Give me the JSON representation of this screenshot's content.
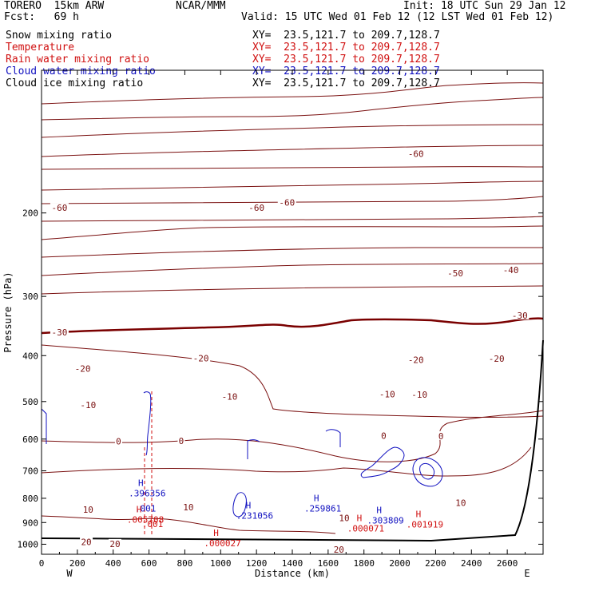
{
  "header": {
    "model": "TORERO  15km ARW",
    "org": "NCAR/MMM",
    "init": "Init: 18 UTC Sun 29 Jan 12",
    "fcst": "Fcst:   69 h",
    "valid": "Valid: 15 UTC Wed 01 Feb 12 (12 LST Wed 01 Feb 12)"
  },
  "colors": {
    "black": "#000000",
    "temperature": "#7a1010",
    "rain": "#d01010",
    "cloud_water": "#1010c0",
    "freezing": "#7a0000"
  },
  "legend": [
    {
      "name": "Snow mixing ratio",
      "xy": "XY=  23.5,121.7 to 209.7,128.7",
      "color": "#000000"
    },
    {
      "name": "Temperature",
      "xy": "XY=  23.5,121.7 to 209.7,128.7",
      "color": "#d01010"
    },
    {
      "name": "Rain water mixing ratio",
      "xy": "XY=  23.5,121.7 to 209.7,128.7",
      "color": "#d01010"
    },
    {
      "name": "Cloud water mixing ratio",
      "xy": "XY=  23.5,121.7 to 209.7,128.7",
      "color": "#1010c0"
    },
    {
      "name": "Cloud ice mixing ratio",
      "xy": "XY=  23.5,121.7 to 209.7,128.7",
      "color": "#000000"
    }
  ],
  "chart_data": {
    "type": "cross-section contour",
    "xlabel": "Distance (km)",
    "ylabel": "Pressure (hPa)",
    "xlim": [
      0,
      2800
    ],
    "ylim": [
      1050,
      100
    ],
    "x_ticks": [
      0,
      200,
      400,
      600,
      800,
      1000,
      1200,
      1400,
      1600,
      1800,
      2000,
      2200,
      2400,
      2600
    ],
    "y_ticks": [
      200,
      300,
      400,
      500,
      600,
      700,
      800,
      900,
      1000
    ],
    "endpoints": {
      "left": "W",
      "right": "E"
    },
    "temperature_contours": [
      {
        "label": "-60",
        "x": 100,
        "p": 195
      },
      {
        "label": "-60",
        "x": 1200,
        "p": 195
      },
      {
        "label": "-60",
        "x": 1370,
        "p": 190
      },
      {
        "label": "-60",
        "x": 2090,
        "p": 150
      },
      {
        "label": "-50",
        "x": 2310,
        "p": 268
      },
      {
        "label": "-40",
        "x": 2620,
        "p": 264
      },
      {
        "label": "-30",
        "x": 100,
        "p": 357
      },
      {
        "label": "-30",
        "x": 2670,
        "p": 329
      },
      {
        "label": "-20",
        "x": 230,
        "p": 426
      },
      {
        "label": "-20",
        "x": 890,
        "p": 405
      },
      {
        "label": "-20",
        "x": 2090,
        "p": 408
      },
      {
        "label": "-20",
        "x": 2540,
        "p": 406
      },
      {
        "label": "-10",
        "x": 260,
        "p": 508
      },
      {
        "label": "-10",
        "x": 1050,
        "p": 488
      },
      {
        "label": "-10",
        "x": 1930,
        "p": 482
      },
      {
        "label": "-10",
        "x": 2110,
        "p": 483
      },
      {
        "label": "0",
        "x": 430,
        "p": 606
      },
      {
        "label": "0",
        "x": 780,
        "p": 605
      },
      {
        "label": "0",
        "x": 1910,
        "p": 590
      },
      {
        "label": "0",
        "x": 2230,
        "p": 591
      },
      {
        "label": "10",
        "x": 260,
        "p": 845
      },
      {
        "label": "10",
        "x": 820,
        "p": 835
      },
      {
        "label": "10",
        "x": 1690,
        "p": 880
      },
      {
        "label": "10",
        "x": 2340,
        "p": 817
      },
      {
        "label": "20",
        "x": 250,
        "p": 988
      },
      {
        "label": "20",
        "x": 410,
        "p": 998
      },
      {
        "label": "20",
        "x": 1660,
        "p": 1025
      }
    ],
    "maxima": [
      {
        "label": "H",
        "value": ".396356",
        "x": 590,
        "p": 780,
        "series": "Cloud water mixing ratio"
      },
      {
        "label": "",
        "value": ".001",
        "x": 580,
        "p": 840,
        "series": "Cloud water mixing ratio"
      },
      {
        "label": "H",
        "value": ".005708",
        "x": 580,
        "p": 887,
        "series": "Rain water mixing ratio"
      },
      {
        "label": "",
        "value": ".001",
        "x": 620,
        "p": 906,
        "series": "Rain water mixing ratio"
      },
      {
        "label": "H",
        "value": ".231056",
        "x": 1190,
        "p": 870,
        "series": "Cloud water mixing ratio"
      },
      {
        "label": "H",
        "value": ".259861",
        "x": 1570,
        "p": 840,
        "series": "Cloud water mixing ratio"
      },
      {
        "label": "H",
        "value": ".303809",
        "x": 1920,
        "p": 890,
        "series": "Cloud water mixing ratio"
      },
      {
        "label": "H",
        "value": ".001919",
        "x": 2140,
        "p": 907,
        "series": "Rain water mixing ratio"
      },
      {
        "label": "H",
        "value": ".000071",
        "x": 1810,
        "p": 925,
        "series": "Rain water mixing ratio"
      },
      {
        "label": "H",
        "value": ".000027",
        "x": 1010,
        "p": 995,
        "series": "Rain water mixing ratio"
      }
    ]
  }
}
